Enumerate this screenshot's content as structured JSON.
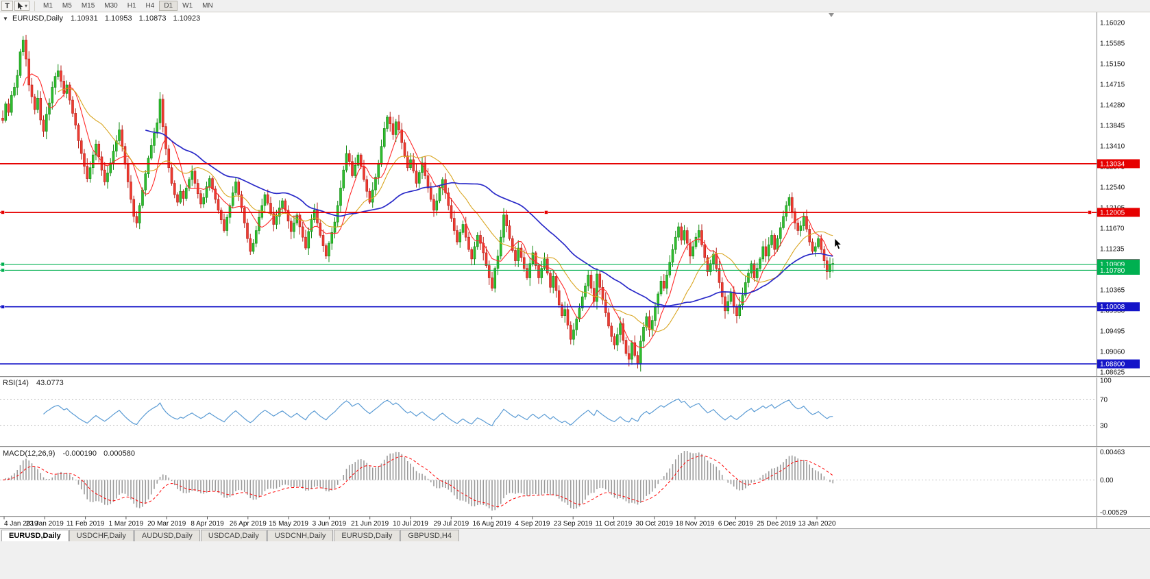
{
  "toolbar": {
    "text_tool_label": "T",
    "timeframes": [
      "M1",
      "M5",
      "M15",
      "M30",
      "H1",
      "H4",
      "D1",
      "W1",
      "MN"
    ],
    "active_timeframe": "D1"
  },
  "chart": {
    "title": {
      "symbol": "EURUSD,Daily",
      "open": "1.10931",
      "high": "1.10953",
      "low": "1.10873",
      "close": "1.10923"
    },
    "colors": {
      "up_fill": "#2fbf2f",
      "up_stroke": "#128912",
      "down_fill": "#ef3c32",
      "down_stroke": "#b61f18",
      "ma_fast": "#ff2a2a",
      "ma_mid": "#d9a520",
      "ma_slow": "#2929c8",
      "rsi": "#5a9bd4",
      "macd_hist": "#9a9a9a",
      "macd_signal": "#ff0000",
      "axis_text": "#111111"
    },
    "ma_periods": {
      "fast": 8,
      "mid": 20,
      "slow": 50
    }
  },
  "rsi": {
    "label": "RSI(14)",
    "value": "43.0773",
    "axis_labels": [
      "100",
      "70",
      "30"
    ],
    "levels": [
      70,
      30
    ],
    "ylim": [
      0,
      100
    ]
  },
  "macd": {
    "label": "MACD(12,26,9)",
    "value_main": "-0.000190",
    "value_signal": "0.000580",
    "axis_labels": [
      "0.00463",
      "0.00",
      "-0.00529"
    ],
    "ylim": [
      -0.00529,
      0.00463
    ],
    "params": {
      "fast": 12,
      "slow": 26,
      "signal": 9
    }
  },
  "tabs": {
    "items": [
      "EURUSD,Daily",
      "USDCHF,Daily",
      "AUDUSD,Daily",
      "USDCAD,Daily",
      "USDCNH,Daily",
      "EURUSD,Daily",
      "GBPUSD,H4"
    ],
    "active": 0
  },
  "chart_data": {
    "type": "candlestick",
    "symbol": "EURUSD",
    "timeframe": "Daily",
    "ohlc_current": {
      "open": 1.10931,
      "high": 1.10953,
      "low": 1.10873,
      "close": 1.10923
    },
    "ylim": [
      1.0853,
      1.1612
    ],
    "y_axis_labels": [
      "1.16020",
      "1.15585",
      "1.15150",
      "1.14715",
      "1.14280",
      "1.13845",
      "1.13410",
      "1.12975",
      "1.12540",
      "1.12105",
      "1.11670",
      "1.11235",
      "1.10800",
      "1.10365",
      "1.09930",
      "1.09495",
      "1.09060",
      "1.08625"
    ],
    "x_axis_dates": [
      "4 Jan 2019",
      "23 Jan 2019",
      "11 Feb 2019",
      "1 Mar 2019",
      "20 Mar 2019",
      "8 Apr 2019",
      "26 Apr 2019",
      "15 May 2019",
      "3 Jun 2019",
      "21 Jun 2019",
      "10 Jul 2019",
      "29 Jul 2019",
      "16 Aug 2019",
      "4 Sep 2019",
      "23 Sep 2019",
      "11 Oct 2019",
      "30 Oct 2019",
      "18 Nov 2019",
      "6 Dec 2019",
      "25 Dec 2019",
      "13 Jan 2020"
    ],
    "bid": {
      "price": 1.10923,
      "label": "1.10923",
      "color": "#666666"
    },
    "horizontal_lines": [
      {
        "price": 1.13034,
        "badge": "1.13034",
        "color": "#e60000",
        "width": 1.8,
        "handles": []
      },
      {
        "price": 1.12005,
        "badge": "1.12005",
        "color": "#e60000",
        "width": 1.8,
        "handles": [
          4,
          797,
          1590
        ]
      },
      {
        "price": 1.10909,
        "badge": "1.10909",
        "color": "#00b050",
        "width": 1.2,
        "handles": [
          4
        ]
      },
      {
        "price": 1.1078,
        "badge": "1.10780",
        "color": "#00b050",
        "width": 1.2,
        "handles": [
          4
        ]
      },
      {
        "price": 1.10008,
        "badge": "1.10008",
        "color": "#1414c8",
        "width": 1.6,
        "handles": [
          4
        ]
      },
      {
        "price": 1.088,
        "badge": "1.08800",
        "color": "#1414c8",
        "width": 1.6,
        "handles": []
      }
    ],
    "open_first": 1.14,
    "closes": [
      1.1395,
      1.143,
      1.1412,
      1.1448,
      1.1465,
      1.149,
      1.154,
      1.1565,
      1.1525,
      1.147,
      1.1445,
      1.1418,
      1.1442,
      1.1396,
      1.1372,
      1.1408,
      1.1432,
      1.1465,
      1.1488,
      1.15,
      1.1478,
      1.1452,
      1.147,
      1.1438,
      1.141,
      1.1385,
      1.1352,
      1.1325,
      1.1298,
      1.1272,
      1.1295,
      1.1322,
      1.1345,
      1.1318,
      1.129,
      1.1265,
      1.1284,
      1.1305,
      1.133,
      1.1352,
      1.1375,
      1.134,
      1.1302,
      1.1265,
      1.1228,
      1.1192,
      1.1178,
      1.1215,
      1.1248,
      1.1282,
      1.1315,
      1.1342,
      1.1368,
      1.139,
      1.144,
      1.1382,
      1.1335,
      1.1295,
      1.1262,
      1.1238,
      1.1222,
      1.1245,
      1.123,
      1.1252,
      1.127,
      1.1288,
      1.1262,
      1.124,
      1.1218,
      1.1232,
      1.1255,
      1.1272,
      1.125,
      1.1228,
      1.1205,
      1.1185,
      1.1162,
      1.119,
      1.1215,
      1.1242,
      1.1265,
      1.1238,
      1.121,
      1.1178,
      1.1145,
      1.1118,
      1.1135,
      1.1162,
      1.119,
      1.1215,
      1.1238,
      1.122,
      1.1198,
      1.1175,
      1.1192,
      1.121,
      1.1225,
      1.1205,
      1.1182,
      1.116,
      1.1178,
      1.1195,
      1.117,
      1.1148,
      1.1125,
      1.116,
      1.1185,
      1.1205,
      1.1178,
      1.1152,
      1.113,
      1.1108,
      1.1135,
      1.1158,
      1.118,
      1.1215,
      1.1252,
      1.129,
      1.1325,
      1.1308,
      1.1278,
      1.13,
      1.1322,
      1.1298,
      1.127,
      1.1245,
      1.1222,
      1.1248,
      1.1275,
      1.1302,
      1.134,
      1.1378,
      1.1402,
      1.1388,
      1.1365,
      1.1392,
      1.1375,
      1.1348,
      1.132,
      1.1295,
      1.1312,
      1.1288,
      1.1262,
      1.1285,
      1.1305,
      1.1278,
      1.1252,
      1.1228,
      1.1205,
      1.1225,
      1.1252,
      1.127,
      1.1242,
      1.1215,
      1.1188,
      1.1162,
      1.1138,
      1.1158,
      1.1175,
      1.1148,
      1.1122,
      1.1102,
      1.1128,
      1.1152,
      1.1135,
      1.1115,
      1.1088,
      1.1062,
      1.104,
      1.1082,
      1.1108,
      1.1148,
      1.1195,
      1.1172,
      1.1145,
      1.112,
      1.1098,
      1.1125,
      1.1105,
      1.1082,
      1.1062,
      1.1092,
      1.1115,
      1.1088,
      1.1062,
      1.1082,
      1.1102,
      1.1072,
      1.1042,
      1.1065,
      1.1035,
      1.1005,
      1.0982,
      1.0995,
      1.0962,
      1.0932,
      1.0952,
      1.0975,
      1.0998,
      1.1022,
      1.1045,
      1.1068,
      1.104,
      1.1012,
      1.107,
      1.1042,
      1.1015,
      1.0988,
      1.096,
      1.0938,
      1.092,
      1.0942,
      1.0965,
      1.093,
      1.0902,
      1.089,
      1.0925,
      1.0898,
      1.088,
      1.0928,
      1.0958,
      1.098,
      1.0952,
      1.0972,
      1.1,
      1.1028,
      1.1055,
      1.104,
      1.1068,
      1.1095,
      1.1122,
      1.1148,
      1.117,
      1.1142,
      1.1162,
      1.1135,
      1.1108,
      1.1128,
      1.1148,
      1.1162,
      1.1132,
      1.1105,
      1.1075,
      1.1092,
      1.1112,
      1.1082,
      1.1052,
      1.1022,
      1.0992,
      1.1012,
      1.1032,
      1.1002,
      1.0982,
      1.1005,
      1.1025,
      1.1052,
      1.1072,
      1.1092,
      1.1062,
      1.1082,
      1.1102,
      1.1128,
      1.1108,
      1.1132,
      1.1152,
      1.1122,
      1.1145,
      1.1168,
      1.1192,
      1.1215,
      1.1232,
      1.1202,
      1.1178,
      1.1162,
      1.1172,
      1.1192,
      1.1165,
      1.1138,
      1.1118,
      1.1128,
      1.1145,
      1.1122,
      1.1098,
      1.1075,
      1.109,
      1.10923
    ]
  }
}
